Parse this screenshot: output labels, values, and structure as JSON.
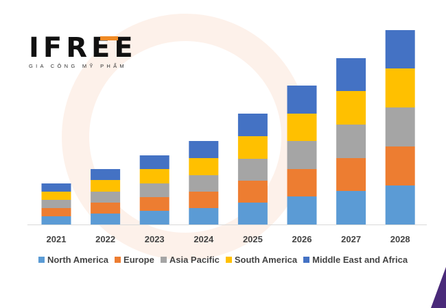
{
  "logo": {
    "name": "IFREE",
    "tagline": "GIA CÔNG MỸ PHẨM"
  },
  "chart_data": {
    "type": "bar",
    "stacked": true,
    "title": "",
    "xlabel": "",
    "ylabel": "",
    "y_axis_shown": false,
    "grid": false,
    "legend_position": "bottom",
    "categories": [
      "2021",
      "2022",
      "2023",
      "2024",
      "2025",
      "2026",
      "2027",
      "2028"
    ],
    "series": [
      {
        "name": "North America",
        "color": "#5b9bd5",
        "values": [
          12,
          16,
          20,
          24,
          32,
          41,
          49,
          57
        ]
      },
      {
        "name": "Europe",
        "color": "#ed7d31",
        "values": [
          12,
          16,
          20,
          24,
          32,
          40,
          48,
          57
        ]
      },
      {
        "name": "Asia Pacific",
        "color": "#a5a5a5",
        "values": [
          12,
          16,
          20,
          24,
          32,
          41,
          49,
          57
        ]
      },
      {
        "name": "South America",
        "color": "#ffc000",
        "values": [
          12,
          17,
          21,
          25,
          33,
          40,
          49,
          57
        ]
      },
      {
        "name": "Middle East and Africa",
        "color": "#4472c4",
        "values": [
          12,
          16,
          20,
          25,
          33,
          41,
          48,
          56
        ]
      }
    ]
  }
}
